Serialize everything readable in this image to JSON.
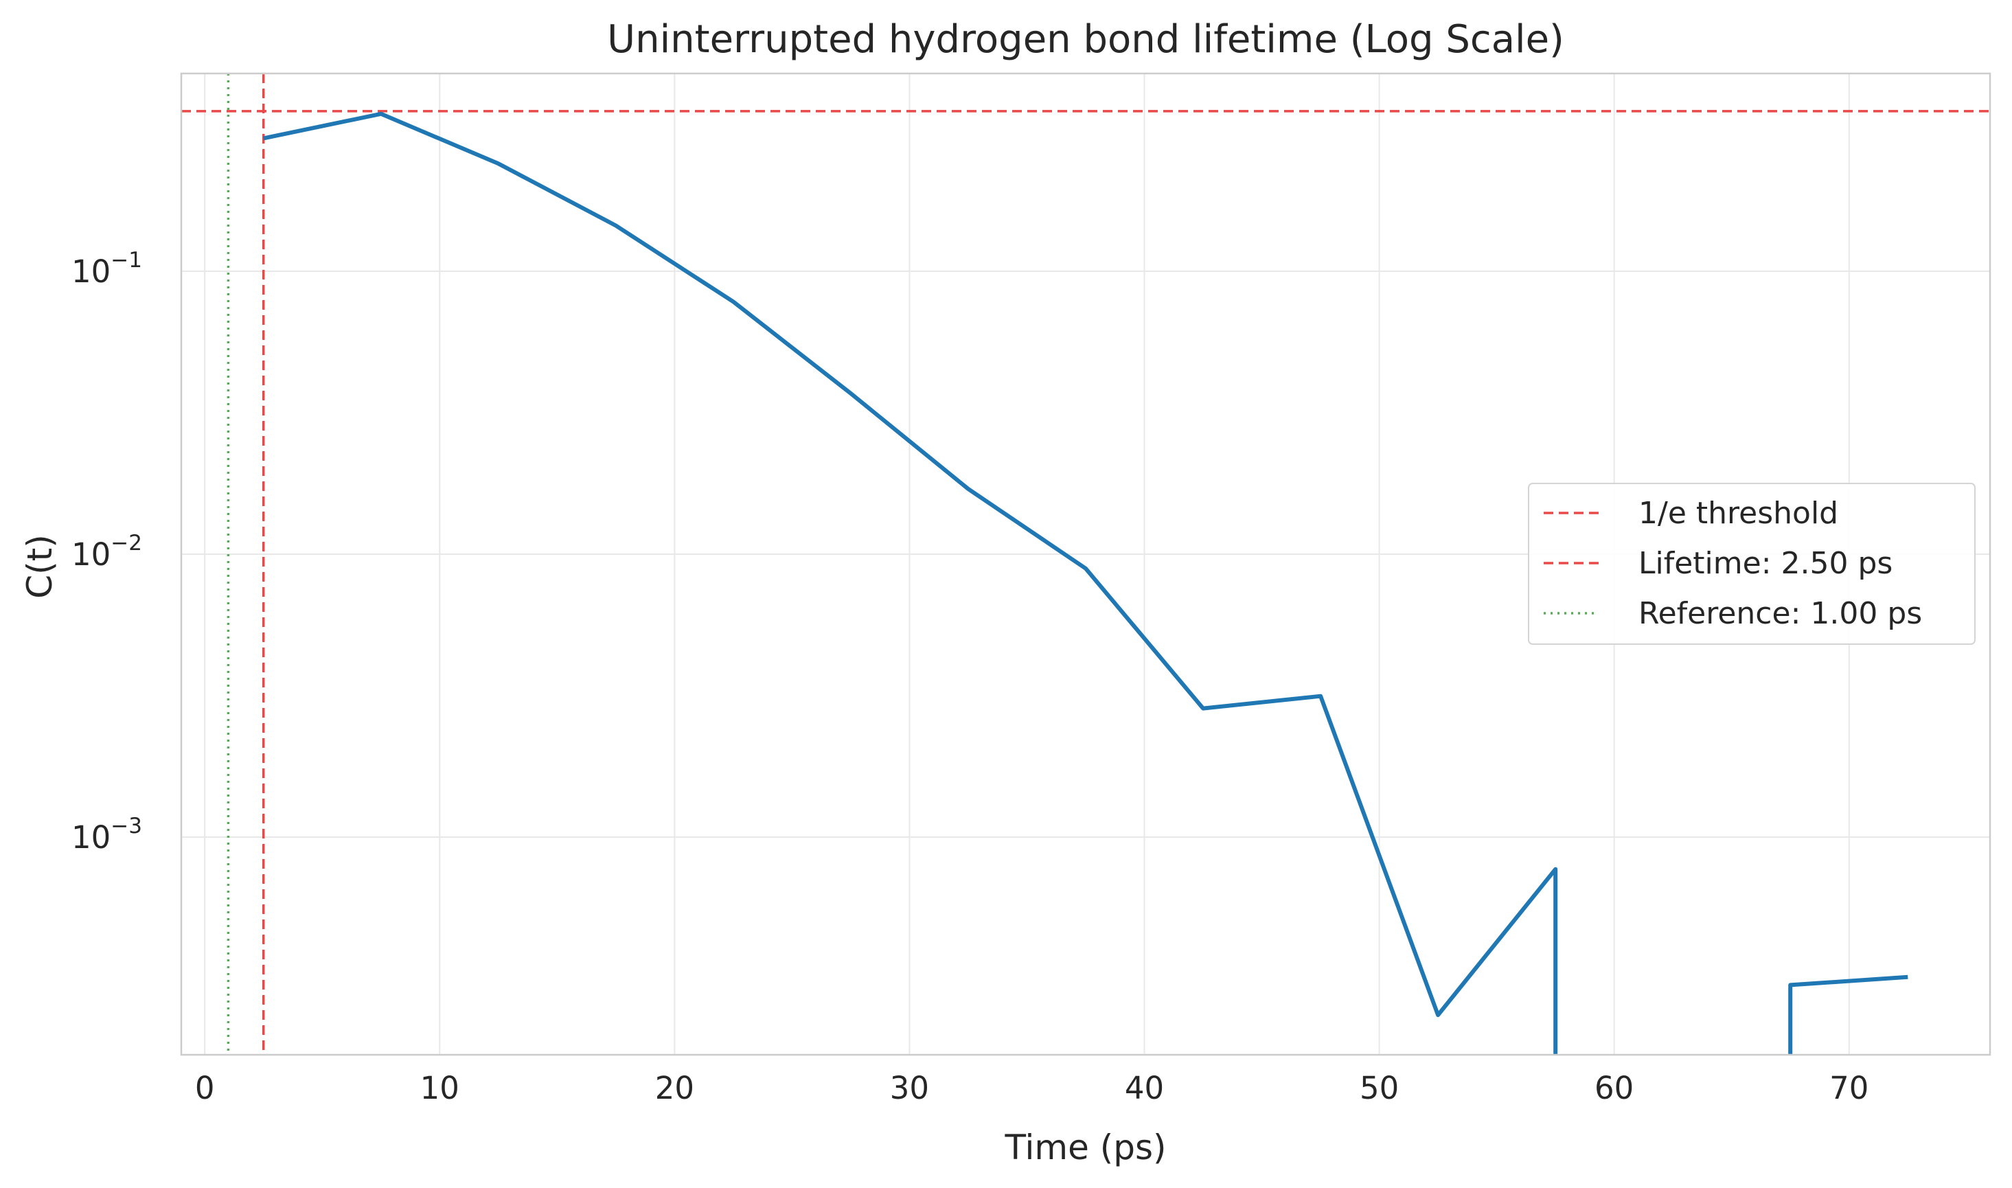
{
  "chart_data": {
    "type": "line",
    "title": "Uninterrupted hydrogen bond lifetime (Log Scale)",
    "xlabel": "Time (ps)",
    "ylabel": "C(t)",
    "xlim": [
      -1,
      76
    ],
    "ylim": [
      0.00017,
      0.5
    ],
    "yscale": "log",
    "grid": true,
    "legend_position": "center-right",
    "x_ticks": [
      0,
      10,
      20,
      30,
      40,
      50,
      60,
      70
    ],
    "y_ticks": [
      {
        "value": 0.1,
        "base": "10",
        "exp": "−1"
      },
      {
        "value": 0.01,
        "base": "10",
        "exp": "−2"
      },
      {
        "value": 0.001,
        "base": "10",
        "exp": "−3"
      }
    ],
    "series": [
      {
        "color": "#1f77b4",
        "segments": [
          [
            [
              2.5,
              0.295
            ],
            [
              7.5,
              0.36
            ],
            [
              12.5,
              0.24
            ],
            [
              17.5,
              0.145
            ],
            [
              22.5,
              0.078
            ],
            [
              27.5,
              0.037
            ],
            [
              32.5,
              0.017
            ],
            [
              37.5,
              0.0089
            ],
            [
              42.5,
              0.00285
            ],
            [
              47.5,
              0.00315
            ],
            [
              52.5,
              0.000235
            ],
            [
              57.5,
              0.00077
            ],
            [
              57.5,
              0.00017
            ]
          ],
          [
            [
              67.5,
              0.00017
            ],
            [
              67.5,
              0.0003
            ],
            [
              72.5,
              0.00032
            ]
          ]
        ]
      }
    ],
    "reference_lines": [
      {
        "name": "1/e threshold",
        "orientation": "horizontal",
        "value": 0.3679,
        "color": "#e84a4a",
        "style": "dashed"
      },
      {
        "name": "Lifetime: 2.50 ps",
        "orientation": "vertical",
        "value": 2.5,
        "color": "#e84a4a",
        "style": "dashed"
      },
      {
        "name": "Reference: 1.00 ps",
        "orientation": "vertical",
        "value": 1.0,
        "color": "#5aaa5a",
        "style": "dotted"
      }
    ],
    "legend": [
      {
        "label": "1/e threshold",
        "color": "#e84a4a",
        "style": "dashed"
      },
      {
        "label": "Lifetime: 2.50 ps",
        "color": "#e84a4a",
        "style": "dashed"
      },
      {
        "label": "Reference: 1.00 ps",
        "color": "#5aaa5a",
        "style": "dotted"
      }
    ]
  }
}
